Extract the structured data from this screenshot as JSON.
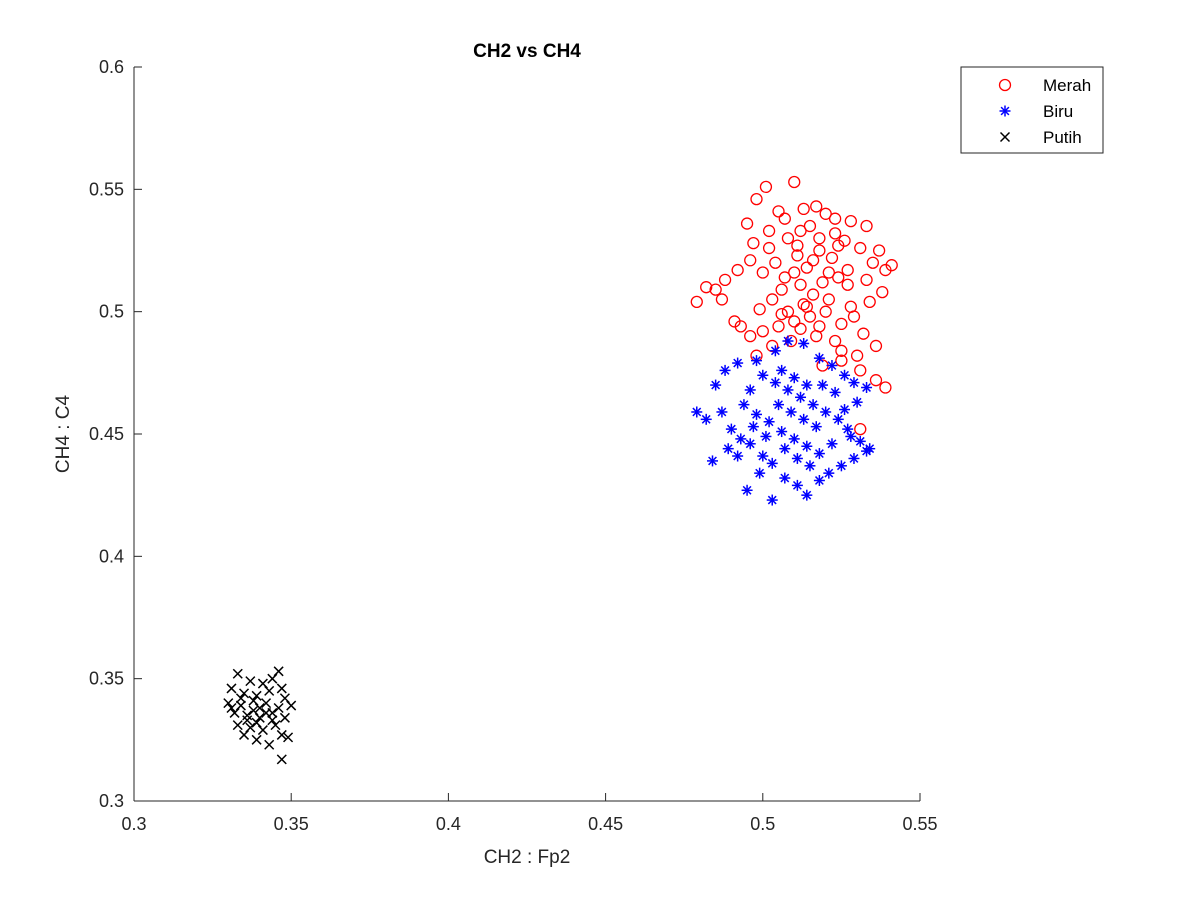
{
  "chart_data": {
    "type": "scatter",
    "title": "CH2 vs CH4",
    "xlabel": "CH2 : Fp2",
    "ylabel": "CH4 : C4",
    "xlim": [
      0.3,
      0.55
    ],
    "ylim": [
      0.3,
      0.6
    ],
    "xticks": [
      "0.3",
      "0.35",
      "0.4",
      "0.45",
      "0.5",
      "0.55"
    ],
    "yticks": [
      "0.3",
      "0.35",
      "0.4",
      "0.45",
      "0.5",
      "0.55",
      "0.6"
    ],
    "grid": false,
    "legend_position": "top-right",
    "series": [
      {
        "name": "Merah",
        "marker": "circle",
        "color": "#ff0000",
        "points": [
          [
            0.51,
            0.553
          ],
          [
            0.501,
            0.551
          ],
          [
            0.498,
            0.546
          ],
          [
            0.513,
            0.542
          ],
          [
            0.517,
            0.543
          ],
          [
            0.505,
            0.541
          ],
          [
            0.52,
            0.54
          ],
          [
            0.495,
            0.536
          ],
          [
            0.523,
            0.538
          ],
          [
            0.528,
            0.537
          ],
          [
            0.533,
            0.535
          ],
          [
            0.502,
            0.533
          ],
          [
            0.508,
            0.53
          ],
          [
            0.526,
            0.529
          ],
          [
            0.531,
            0.526
          ],
          [
            0.497,
            0.528
          ],
          [
            0.511,
            0.527
          ],
          [
            0.518,
            0.525
          ],
          [
            0.535,
            0.52
          ],
          [
            0.539,
            0.517
          ],
          [
            0.541,
            0.519
          ],
          [
            0.521,
            0.516
          ],
          [
            0.507,
            0.514
          ],
          [
            0.514,
            0.518
          ],
          [
            0.492,
            0.517
          ],
          [
            0.488,
            0.513
          ],
          [
            0.482,
            0.51
          ],
          [
            0.487,
            0.505
          ],
          [
            0.479,
            0.504
          ],
          [
            0.538,
            0.508
          ],
          [
            0.534,
            0.504
          ],
          [
            0.528,
            0.502
          ],
          [
            0.52,
            0.5
          ],
          [
            0.515,
            0.498
          ],
          [
            0.51,
            0.496
          ],
          [
            0.505,
            0.494
          ],
          [
            0.5,
            0.492
          ],
          [
            0.496,
            0.49
          ],
          [
            0.491,
            0.496
          ],
          [
            0.532,
            0.491
          ],
          [
            0.536,
            0.486
          ],
          [
            0.53,
            0.482
          ],
          [
            0.525,
            0.484
          ],
          [
            0.531,
            0.476
          ],
          [
            0.536,
            0.472
          ],
          [
            0.539,
            0.469
          ],
          [
            0.523,
            0.488
          ],
          [
            0.517,
            0.49
          ],
          [
            0.509,
            0.488
          ],
          [
            0.503,
            0.486
          ],
          [
            0.498,
            0.482
          ],
          [
            0.513,
            0.503
          ],
          [
            0.516,
            0.507
          ],
          [
            0.512,
            0.511
          ],
          [
            0.519,
            0.512
          ],
          [
            0.524,
            0.514
          ],
          [
            0.527,
            0.511
          ],
          [
            0.506,
            0.509
          ],
          [
            0.503,
            0.505
          ],
          [
            0.499,
            0.501
          ],
          [
            0.508,
            0.5
          ],
          [
            0.514,
            0.502
          ],
          [
            0.521,
            0.505
          ],
          [
            0.529,
            0.498
          ],
          [
            0.525,
            0.495
          ],
          [
            0.518,
            0.494
          ],
          [
            0.512,
            0.493
          ],
          [
            0.506,
            0.499
          ],
          [
            0.516,
            0.521
          ],
          [
            0.511,
            0.523
          ],
          [
            0.504,
            0.52
          ],
          [
            0.5,
            0.516
          ],
          [
            0.522,
            0.522
          ],
          [
            0.527,
            0.517
          ],
          [
            0.51,
            0.516
          ],
          [
            0.531,
            0.452
          ],
          [
            0.525,
            0.48
          ],
          [
            0.519,
            0.478
          ],
          [
            0.533,
            0.513
          ],
          [
            0.537,
            0.525
          ],
          [
            0.523,
            0.532
          ],
          [
            0.515,
            0.535
          ],
          [
            0.507,
            0.538
          ],
          [
            0.502,
            0.526
          ],
          [
            0.496,
            0.521
          ],
          [
            0.493,
            0.494
          ],
          [
            0.485,
            0.509
          ],
          [
            0.524,
            0.527
          ],
          [
            0.518,
            0.53
          ],
          [
            0.512,
            0.533
          ]
        ]
      },
      {
        "name": "Biru",
        "marker": "asterisk",
        "color": "#0000ff",
        "points": [
          [
            0.508,
            0.488
          ],
          [
            0.513,
            0.487
          ],
          [
            0.504,
            0.484
          ],
          [
            0.498,
            0.48
          ],
          [
            0.492,
            0.479
          ],
          [
            0.518,
            0.481
          ],
          [
            0.522,
            0.478
          ],
          [
            0.526,
            0.474
          ],
          [
            0.529,
            0.471
          ],
          [
            0.533,
            0.469
          ],
          [
            0.488,
            0.476
          ],
          [
            0.485,
            0.47
          ],
          [
            0.479,
            0.459
          ],
          [
            0.482,
            0.456
          ],
          [
            0.487,
            0.459
          ],
          [
            0.49,
            0.452
          ],
          [
            0.484,
            0.439
          ],
          [
            0.492,
            0.441
          ],
          [
            0.496,
            0.446
          ],
          [
            0.5,
            0.441
          ],
          [
            0.495,
            0.427
          ],
          [
            0.503,
            0.423
          ],
          [
            0.507,
            0.432
          ],
          [
            0.511,
            0.429
          ],
          [
            0.514,
            0.425
          ],
          [
            0.518,
            0.431
          ],
          [
            0.521,
            0.434
          ],
          [
            0.525,
            0.437
          ],
          [
            0.529,
            0.44
          ],
          [
            0.533,
            0.443
          ],
          [
            0.534,
            0.444
          ],
          [
            0.531,
            0.447
          ],
          [
            0.527,
            0.452
          ],
          [
            0.524,
            0.456
          ],
          [
            0.52,
            0.459
          ],
          [
            0.516,
            0.462
          ],
          [
            0.512,
            0.465
          ],
          [
            0.508,
            0.468
          ],
          [
            0.504,
            0.471
          ],
          [
            0.5,
            0.474
          ],
          [
            0.496,
            0.468
          ],
          [
            0.494,
            0.462
          ],
          [
            0.498,
            0.458
          ],
          [
            0.502,
            0.455
          ],
          [
            0.506,
            0.451
          ],
          [
            0.51,
            0.448
          ],
          [
            0.514,
            0.445
          ],
          [
            0.518,
            0.442
          ],
          [
            0.522,
            0.446
          ],
          [
            0.526,
            0.46
          ],
          [
            0.53,
            0.463
          ],
          [
            0.505,
            0.462
          ],
          [
            0.509,
            0.459
          ],
          [
            0.513,
            0.456
          ],
          [
            0.517,
            0.453
          ],
          [
            0.501,
            0.449
          ],
          [
            0.497,
            0.453
          ],
          [
            0.507,
            0.444
          ],
          [
            0.511,
            0.44
          ],
          [
            0.515,
            0.437
          ],
          [
            0.503,
            0.438
          ],
          [
            0.499,
            0.434
          ],
          [
            0.519,
            0.47
          ],
          [
            0.523,
            0.467
          ],
          [
            0.506,
            0.476
          ],
          [
            0.51,
            0.473
          ],
          [
            0.514,
            0.47
          ],
          [
            0.493,
            0.448
          ],
          [
            0.489,
            0.444
          ],
          [
            0.528,
            0.449
          ]
        ]
      },
      {
        "name": "Putih",
        "marker": "x",
        "color": "#000000",
        "points": [
          [
            0.333,
            0.352
          ],
          [
            0.337,
            0.349
          ],
          [
            0.341,
            0.348
          ],
          [
            0.346,
            0.353
          ],
          [
            0.344,
            0.35
          ],
          [
            0.331,
            0.346
          ],
          [
            0.335,
            0.344
          ],
          [
            0.339,
            0.343
          ],
          [
            0.343,
            0.345
          ],
          [
            0.347,
            0.346
          ],
          [
            0.33,
            0.34
          ],
          [
            0.334,
            0.339
          ],
          [
            0.338,
            0.341
          ],
          [
            0.342,
            0.34
          ],
          [
            0.346,
            0.338
          ],
          [
            0.35,
            0.339
          ],
          [
            0.332,
            0.336
          ],
          [
            0.336,
            0.335
          ],
          [
            0.34,
            0.334
          ],
          [
            0.344,
            0.336
          ],
          [
            0.348,
            0.334
          ],
          [
            0.333,
            0.331
          ],
          [
            0.337,
            0.33
          ],
          [
            0.341,
            0.329
          ],
          [
            0.345,
            0.331
          ],
          [
            0.349,
            0.326
          ],
          [
            0.335,
            0.327
          ],
          [
            0.339,
            0.325
          ],
          [
            0.343,
            0.323
          ],
          [
            0.347,
            0.327
          ],
          [
            0.347,
            0.317
          ],
          [
            0.338,
            0.337
          ],
          [
            0.34,
            0.338
          ],
          [
            0.342,
            0.336
          ],
          [
            0.336,
            0.333
          ],
          [
            0.344,
            0.333
          ],
          [
            0.334,
            0.342
          ],
          [
            0.348,
            0.342
          ],
          [
            0.331,
            0.338
          ],
          [
            0.339,
            0.332
          ]
        ]
      }
    ]
  }
}
